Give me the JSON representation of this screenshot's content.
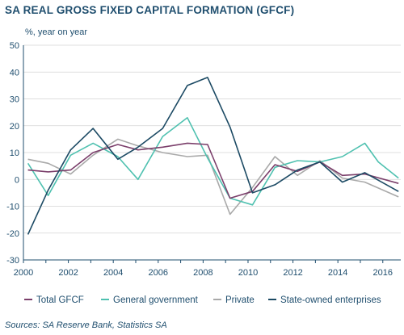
{
  "title": "SA REAL GROSS FIXED CAPITAL FORMATION (GFCF)",
  "source": "Sources: SA Reserve Bank, Statistics SA",
  "chart_data": {
    "type": "line",
    "ylabel": "%, year on year",
    "xlabel": "",
    "xlim": [
      2000,
      2016.8
    ],
    "ylim": [
      -30,
      50
    ],
    "yticks": [
      50,
      40,
      30,
      20,
      10,
      0,
      -10,
      -20,
      -30
    ],
    "xticks": [
      2000,
      2002,
      2004,
      2006,
      2008,
      2010,
      2012,
      2014,
      2016
    ],
    "grid": "horizontal",
    "legend_position": "bottom",
    "series": [
      {
        "name": "Total GFCF",
        "color": "#7b3f6b",
        "x": [
          2000.2,
          2001.1,
          2002.1,
          2003.1,
          2004.2,
          2005.1,
          2006.2,
          2007.3,
          2008.2,
          2009.2,
          2010.2,
          2011.2,
          2012.2,
          2013.2,
          2014.2,
          2015.2,
          2016.7
        ],
        "y": [
          3.5,
          2.8,
          3.5,
          10.0,
          13.0,
          11.0,
          12.0,
          13.5,
          13.0,
          -7.0,
          -4.5,
          5.5,
          3.0,
          6.5,
          1.5,
          2.0,
          -1.5
        ]
      },
      {
        "name": "General government",
        "color": "#4fc1b0",
        "x": [
          2000.2,
          2001.1,
          2002.1,
          2003.1,
          2004.2,
          2005.1,
          2006.2,
          2007.3,
          2008.2,
          2009.2,
          2010.2,
          2011.2,
          2012.2,
          2013.2,
          2014.2,
          2015.2,
          2015.8,
          2016.7
        ],
        "y": [
          6.0,
          -6.0,
          9.0,
          13.5,
          8.5,
          0.0,
          16.0,
          23.0,
          8.0,
          -7.0,
          -9.5,
          4.5,
          7.0,
          6.5,
          8.5,
          13.5,
          6.5,
          0.5
        ]
      },
      {
        "name": "Private",
        "color": "#a9a9a9",
        "x": [
          2000.2,
          2001.1,
          2002.1,
          2003.1,
          2004.2,
          2005.1,
          2006.2,
          2007.3,
          2008.2,
          2009.2,
          2010.2,
          2011.2,
          2012.2,
          2013.2,
          2014.2,
          2015.2,
          2016.7
        ],
        "y": [
          7.5,
          6.0,
          2.0,
          9.0,
          15.0,
          12.5,
          10.0,
          8.5,
          9.0,
          -13.0,
          -3.0,
          8.5,
          1.5,
          7.0,
          0.5,
          -1.0,
          -6.5
        ]
      },
      {
        "name": "State-owned enterprises",
        "color": "#1c4a64",
        "x": [
          2000.2,
          2001.1,
          2002.1,
          2003.1,
          2004.2,
          2005.1,
          2006.2,
          2007.3,
          2008.2,
          2009.2,
          2010.2,
          2011.2,
          2012.2,
          2013.2,
          2014.2,
          2015.2,
          2016.7
        ],
        "y": [
          -20.5,
          -4.0,
          11.0,
          19.0,
          7.5,
          12.0,
          19.0,
          35.0,
          38.0,
          19.5,
          -5.0,
          -2.0,
          3.5,
          6.5,
          -1.0,
          2.5,
          -4.5
        ]
      }
    ]
  }
}
